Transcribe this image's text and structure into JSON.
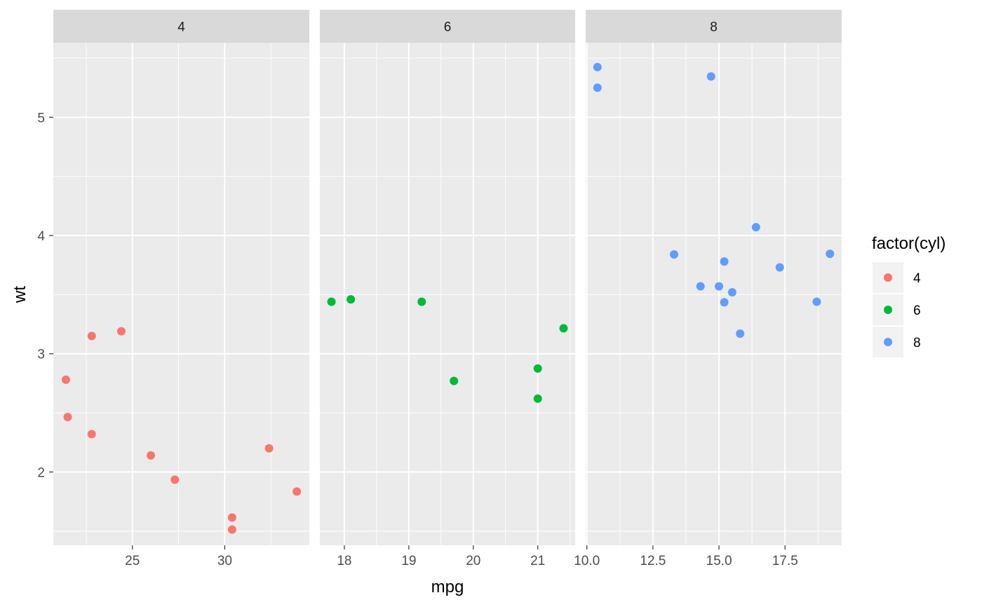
{
  "chart_data": {
    "type": "scatter",
    "facet_by": "cyl",
    "xlabel": "mpg",
    "ylabel": "wt",
    "ylim": [
      1.38,
      5.63
    ],
    "y_ticks": [
      2,
      3,
      4,
      5
    ],
    "y_tick_labels": [
      "2",
      "3",
      "4",
      "5"
    ],
    "grid": true,
    "legend": {
      "title": "factor(cyl)",
      "placement": "right",
      "entries": [
        {
          "label": "4",
          "color": "#F8766D"
        },
        {
          "label": "6",
          "color": "#00BA38"
        },
        {
          "label": "8",
          "color": "#619CFF"
        }
      ]
    },
    "panels": [
      {
        "strip": "4",
        "color": "#F8766D",
        "xlim": [
          20.72,
          34.58
        ],
        "x_ticks": [
          25,
          30
        ],
        "x_tick_labels": [
          "25",
          "30"
        ],
        "points": [
          {
            "x": 22.8,
            "y": 2.32
          },
          {
            "x": 24.4,
            "y": 3.19
          },
          {
            "x": 22.8,
            "y": 3.15
          },
          {
            "x": 32.4,
            "y": 2.2
          },
          {
            "x": 30.4,
            "y": 1.615
          },
          {
            "x": 33.9,
            "y": 1.835
          },
          {
            "x": 21.5,
            "y": 2.465
          },
          {
            "x": 27.3,
            "y": 1.935
          },
          {
            "x": 26.0,
            "y": 2.14
          },
          {
            "x": 30.4,
            "y": 1.513
          },
          {
            "x": 21.4,
            "y": 2.78
          }
        ]
      },
      {
        "strip": "6",
        "color": "#00BA38",
        "xlim": [
          17.62,
          21.58
        ],
        "x_ticks": [
          18,
          19,
          20,
          21
        ],
        "x_tick_labels": [
          "18",
          "19",
          "20",
          "21"
        ],
        "points": [
          {
            "x": 21.0,
            "y": 2.62
          },
          {
            "x": 21.0,
            "y": 2.875
          },
          {
            "x": 21.4,
            "y": 3.215
          },
          {
            "x": 18.1,
            "y": 3.46
          },
          {
            "x": 19.2,
            "y": 3.44
          },
          {
            "x": 17.8,
            "y": 3.44
          },
          {
            "x": 19.7,
            "y": 2.77
          }
        ]
      },
      {
        "strip": "8",
        "color": "#619CFF",
        "xlim": [
          9.955,
          19.645
        ],
        "x_ticks": [
          10.0,
          12.5,
          15.0,
          17.5
        ],
        "x_tick_labels": [
          "10.0",
          "12.5",
          "15.0",
          "17.5"
        ],
        "points": [
          {
            "x": 18.7,
            "y": 3.44
          },
          {
            "x": 14.3,
            "y": 3.57
          },
          {
            "x": 16.4,
            "y": 4.07
          },
          {
            "x": 17.3,
            "y": 3.73
          },
          {
            "x": 15.2,
            "y": 3.78
          },
          {
            "x": 10.4,
            "y": 5.25
          },
          {
            "x": 10.4,
            "y": 5.424
          },
          {
            "x": 14.7,
            "y": 5.345
          },
          {
            "x": 15.5,
            "y": 3.52
          },
          {
            "x": 15.2,
            "y": 3.435
          },
          {
            "x": 13.3,
            "y": 3.84
          },
          {
            "x": 19.2,
            "y": 3.845
          },
          {
            "x": 15.8,
            "y": 3.17
          },
          {
            "x": 15.0,
            "y": 3.57
          }
        ]
      }
    ]
  }
}
